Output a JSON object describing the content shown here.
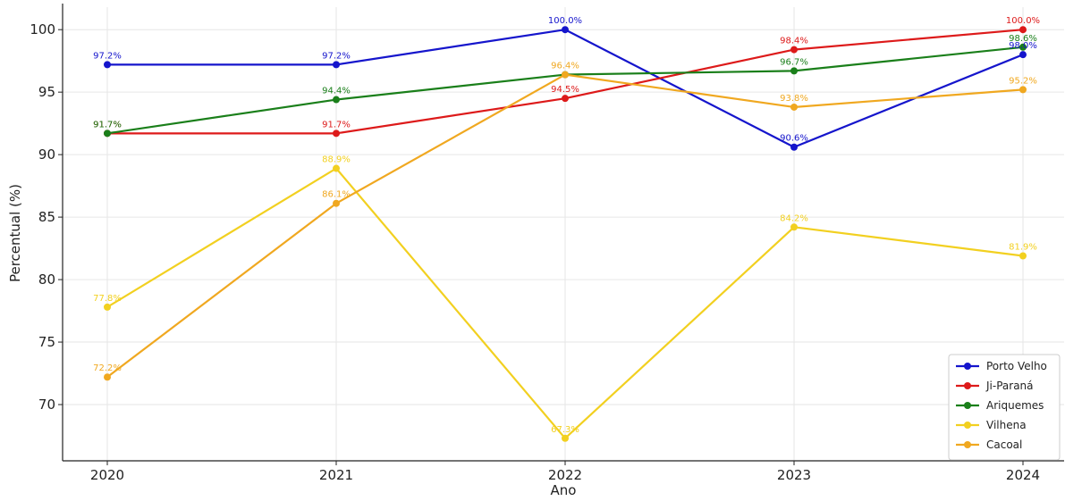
{
  "chart_data": {
    "type": "line",
    "title": "",
    "xlabel": "Ano",
    "ylabel": "Percentual (%)",
    "x": [
      "2020",
      "2021",
      "2022",
      "2023",
      "2024"
    ],
    "ylim": [
      65.5,
      101.8
    ],
    "yticks": [
      70,
      75,
      80,
      85,
      90,
      95,
      100
    ],
    "grid": true,
    "legend_position": "bottom-right",
    "series": [
      {
        "name": "Porto Velho",
        "color": "#1515cc",
        "values": [
          97.2,
          97.2,
          100.0,
          90.6,
          98.0
        ],
        "labels": [
          "97.2%",
          "97.2%",
          "100.0%",
          "90.6%",
          "98.0%"
        ]
      },
      {
        "name": "Ji-Paraná",
        "color": "#dd1a1a",
        "values": [
          91.7,
          91.7,
          94.5,
          98.4,
          100.0
        ],
        "labels": [
          "91.7%",
          "91.7%",
          "94.5%",
          "98.4%",
          "100.0%"
        ]
      },
      {
        "name": "Ariquemes",
        "color": "#1a7f1a",
        "values": [
          91.7,
          94.4,
          96.4,
          96.7,
          98.6
        ],
        "labels": [
          "91.7%",
          "94.4%",
          "",
          "96.7%",
          "98.6%"
        ]
      },
      {
        "name": "Vilhena",
        "color": "#f2d020",
        "values": [
          77.8,
          88.9,
          67.3,
          84.2,
          81.9
        ],
        "labels": [
          "77.8%",
          "88.9%",
          "67.3%",
          "84.2%",
          "81.9%"
        ]
      },
      {
        "name": "Cacoal",
        "color": "#f0a820",
        "values": [
          72.2,
          86.1,
          96.4,
          93.8,
          95.2
        ],
        "labels": [
          "72.2%",
          "86.1%",
          "96.4%",
          "93.8%",
          "95.2%"
        ]
      }
    ]
  }
}
